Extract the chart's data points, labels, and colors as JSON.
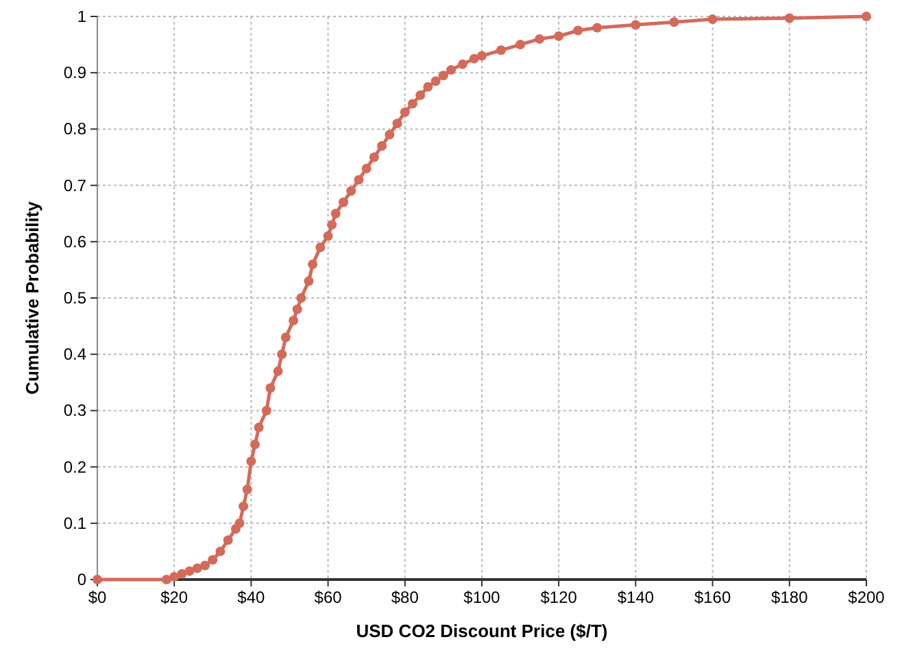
{
  "chart_data": {
    "type": "line",
    "xlabel": "USD CO2 Discount Price ($/T)",
    "ylabel": "Cumulative Probability",
    "x": [
      0,
      18,
      20,
      22,
      24,
      26,
      28,
      30,
      32,
      34,
      36,
      37,
      38,
      39,
      40,
      41,
      42,
      44,
      45,
      47,
      48,
      49,
      51,
      52,
      53,
      55,
      56,
      58,
      60,
      61,
      62,
      64,
      66,
      68,
      70,
      72,
      74,
      76,
      78,
      80,
      82,
      84,
      86,
      88,
      90,
      92,
      95,
      98,
      100,
      105,
      110,
      115,
      120,
      125,
      130,
      140,
      150,
      160,
      180,
      200
    ],
    "series": [
      {
        "color": "#d46a5a",
        "values": [
          0,
          0,
          0.005,
          0.01,
          0.015,
          0.02,
          0.025,
          0.035,
          0.05,
          0.07,
          0.09,
          0.1,
          0.13,
          0.16,
          0.21,
          0.24,
          0.27,
          0.3,
          0.34,
          0.37,
          0.4,
          0.43,
          0.46,
          0.48,
          0.5,
          0.53,
          0.56,
          0.59,
          0.61,
          0.63,
          0.65,
          0.67,
          0.69,
          0.71,
          0.73,
          0.75,
          0.77,
          0.79,
          0.81,
          0.83,
          0.845,
          0.86,
          0.875,
          0.885,
          0.895,
          0.905,
          0.915,
          0.925,
          0.93,
          0.94,
          0.95,
          0.96,
          0.965,
          0.975,
          0.98,
          0.985,
          0.99,
          0.995,
          0.997,
          1
        ]
      }
    ],
    "xlim": [
      0,
      200
    ],
    "xticks": [
      {
        "value": 0,
        "label": "$0"
      },
      {
        "value": 20,
        "label": "$20"
      },
      {
        "value": 40,
        "label": "$40"
      },
      {
        "value": 60,
        "label": "$60"
      },
      {
        "value": 80,
        "label": "$80"
      },
      {
        "value": 100,
        "label": "$100"
      },
      {
        "value": 120,
        "label": "$120"
      },
      {
        "value": 140,
        "label": "$140"
      },
      {
        "value": 160,
        "label": "$160"
      },
      {
        "value": 180,
        "label": "$180"
      },
      {
        "value": 200,
        "label": "$200"
      }
    ],
    "ylim": [
      0,
      1
    ],
    "yticks": [
      0,
      0.1,
      0.2,
      0.3,
      0.4,
      0.5,
      0.6,
      0.7,
      0.8,
      0.9,
      1
    ],
    "grid": true,
    "marker": "circle",
    "line_style": "solid"
  }
}
